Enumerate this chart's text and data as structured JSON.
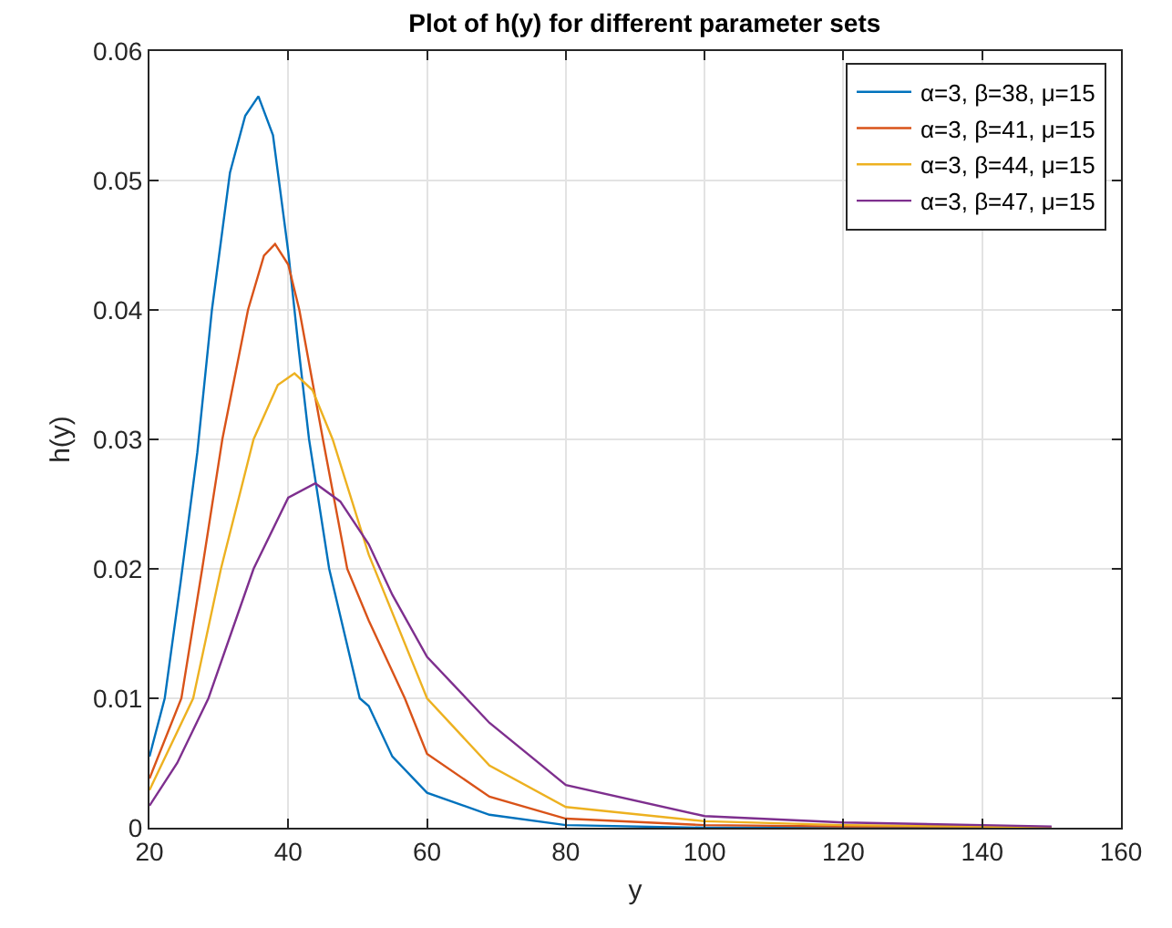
{
  "chart_data": {
    "type": "line",
    "title": "Plot of h(y) for different parameter sets",
    "xlabel": "y",
    "ylabel": "h(y)",
    "xlim": [
      20,
      160
    ],
    "xticks": [
      20,
      40,
      60,
      80,
      100,
      120,
      140,
      160
    ],
    "ylim": [
      0,
      0.06
    ],
    "yticks": [
      0,
      0.01,
      0.02,
      0.03,
      0.04,
      0.05,
      0.06
    ],
    "grid": true,
    "legend": "top right",
    "line_style": "solid",
    "marker": "none",
    "series": [
      {
        "name": "α=3, β=38, μ=15",
        "color": "#0072bd",
        "x": [
          20,
          22.2,
          24.5,
          26.9,
          29,
          31.6,
          33.8,
          35.7,
          37.8,
          40,
          41.5,
          43,
          45.9,
          50.3,
          51.6,
          55,
          60,
          69,
          80,
          100,
          120,
          140,
          150
        ],
        "values": [
          0.0055,
          0.01,
          0.019,
          0.029,
          0.04,
          0.0506,
          0.055,
          0.0565,
          0.0535,
          0.0445,
          0.037,
          0.03,
          0.02,
          0.01,
          0.0094,
          0.0055,
          0.0027,
          0.001,
          0.0002,
          0,
          0,
          0,
          0
        ]
      },
      {
        "name": "α=3, β=41, μ=15",
        "color": "#d95319",
        "x": [
          20,
          24.6,
          27.6,
          30.5,
          34.2,
          36.5,
          38.1,
          40,
          41.6,
          45,
          48.5,
          51.6,
          56.8,
          60,
          69,
          80,
          100,
          120,
          140,
          150
        ],
        "values": [
          0.0038,
          0.01,
          0.02,
          0.03,
          0.04,
          0.0442,
          0.0451,
          0.0435,
          0.04,
          0.03,
          0.02,
          0.016,
          0.01,
          0.0057,
          0.0024,
          0.0007,
          0.0002,
          0.0001,
          0.0001,
          0
        ]
      },
      {
        "name": "α=3, β=44, μ=15",
        "color": "#edb120",
        "x": [
          20,
          26.3,
          30.3,
          35,
          38.5,
          40.9,
          43.5,
          46.4,
          51.6,
          60,
          69,
          80,
          100,
          120,
          140,
          150
        ],
        "values": [
          0.0029,
          0.01,
          0.02,
          0.03,
          0.0342,
          0.0351,
          0.0338,
          0.03,
          0.0211,
          0.01,
          0.0048,
          0.0016,
          0.0005,
          0.0002,
          0.0001,
          0
        ]
      },
      {
        "name": "α=3, β=47, μ=15",
        "color": "#7e2f8e",
        "x": [
          20,
          24,
          28.5,
          35,
          40,
          43.9,
          47.5,
          51.6,
          55,
          60,
          69,
          80,
          100,
          120,
          140,
          150
        ],
        "values": [
          0.0017,
          0.005,
          0.01,
          0.02,
          0.0255,
          0.0266,
          0.0252,
          0.0219,
          0.018,
          0.0132,
          0.0081,
          0.0033,
          0.0009,
          0.0004,
          0.0002,
          0.0001
        ]
      }
    ]
  }
}
